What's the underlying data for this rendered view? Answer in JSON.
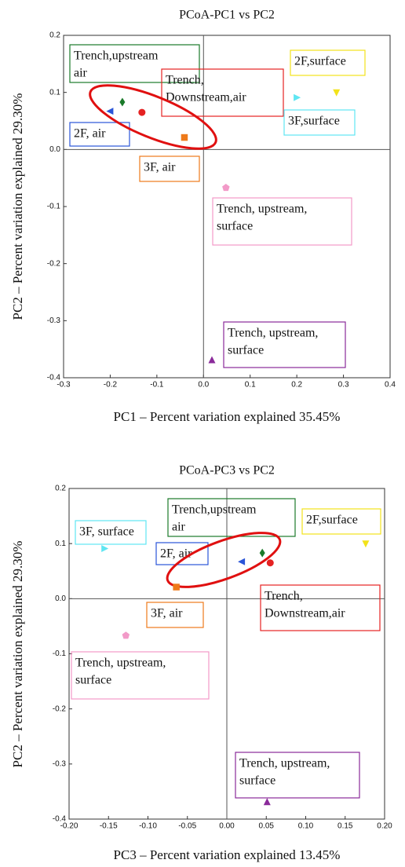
{
  "chart_data": [
    {
      "type": "scatter",
      "title": "PCoA-PC1 vs PC2",
      "x_label": "PC1 – Percent variation explained 35.45%",
      "y_label": "PC2 – Percent variation explained 29.30%",
      "xlim": [
        -0.3,
        0.4
      ],
      "ylim": [
        -0.4,
        0.2
      ],
      "xticks": [
        -0.3,
        -0.2,
        -0.1,
        {
          "value": 0,
          "label": "0.0"
        },
        0.1,
        0.2,
        0.3,
        0.4
      ],
      "yticks": [
        -0.4,
        -0.3,
        -0.2,
        -0.1,
        {
          "value": 0,
          "label": "0.0"
        },
        0.1,
        0.2
      ],
      "zero_lines": true,
      "series": [
        {
          "label": [
            "2F, air"
          ],
          "color": "#2a55d8",
          "marker": "triangle-left",
          "x": -0.2,
          "y": 0.067
        },
        {
          "label": [
            "Trench,upstream",
            "air"
          ],
          "color": "#1a7a2a",
          "marker": "diamond",
          "x": -0.174,
          "y": 0.083
        },
        {
          "label": [
            "Trench,",
            "Downstream,air"
          ],
          "color": "#e52222",
          "marker": "circle",
          "x": -0.132,
          "y": 0.065
        },
        {
          "label": [
            "3F, air"
          ],
          "color": "#ee7a1a",
          "marker": "square",
          "x": -0.041,
          "y": 0.021
        },
        {
          "label": [
            "Trench, upstream,",
            "surface"
          ],
          "color": "#f29ac8",
          "marker": "pentagon",
          "x": 0.048,
          "y": -0.067
        },
        {
          "label": [
            "3F,surface"
          ],
          "color": "#5fe6f2",
          "marker": "triangle-right",
          "x": 0.2,
          "y": 0.091
        },
        {
          "label": [
            "2F,surface"
          ],
          "color": "#f2e21a",
          "marker": "triangle-down",
          "x": 0.285,
          "y": 0.1
        },
        {
          "label": [
            "Trench, upstream,",
            "surface"
          ],
          "color": "#8a2a9a",
          "marker": "triangle-up",
          "x": 0.018,
          "y": -0.369
        }
      ]
    },
    {
      "type": "scatter",
      "title": "PCoA-PC3 vs PC2",
      "x_label": "PC3 – Percent variation explained 13.45%",
      "y_label": "PC2 – Percent variation explained 29.30%",
      "xlim": [
        -0.2,
        0.2
      ],
      "ylim": [
        -0.4,
        0.2
      ],
      "xticks": [
        {
          "value": -0.2,
          "label": "-0.20"
        },
        -0.15,
        {
          "value": -0.1,
          "label": "-0.10"
        },
        -0.05,
        {
          "value": 0,
          "label": "0.00"
        },
        0.05,
        {
          "value": 0.1,
          "label": "0.10"
        },
        0.15,
        {
          "value": 0.2,
          "label": "0.20"
        }
      ],
      "yticks": [
        -0.4,
        -0.3,
        -0.2,
        -0.1,
        {
          "value": 0,
          "label": "0.0"
        },
        0.1,
        0.2
      ],
      "zero_lines": true,
      "series": [
        {
          "label": [
            "2F, air"
          ],
          "color": "#2a55d8",
          "marker": "triangle-left",
          "x": 0.019,
          "y": 0.067
        },
        {
          "label": [
            "Trench,upstream",
            "air"
          ],
          "color": "#1a7a2a",
          "marker": "diamond",
          "x": 0.045,
          "y": 0.083
        },
        {
          "label": [
            "Trench,",
            "Downstream,air"
          ],
          "color": "#e52222",
          "marker": "circle",
          "x": 0.055,
          "y": 0.065
        },
        {
          "label": [
            "3F, air"
          ],
          "color": "#ee7a1a",
          "marker": "square",
          "x": -0.064,
          "y": 0.021
        },
        {
          "label": [
            "Trench, upstream,",
            "surface"
          ],
          "color": "#f29ac8",
          "marker": "pentagon",
          "x": -0.128,
          "y": -0.067
        },
        {
          "label": [
            "3F, surface"
          ],
          "color": "#5fe6f2",
          "marker": "triangle-right",
          "x": -0.155,
          "y": 0.091
        },
        {
          "label": [
            "2F,surface"
          ],
          "color": "#f2e21a",
          "marker": "triangle-down",
          "x": 0.176,
          "y": 0.1
        },
        {
          "label": [
            "Trench, upstream,",
            "surface"
          ],
          "color": "#8a2a9a",
          "marker": "triangle-up",
          "x": 0.051,
          "y": -0.369
        }
      ]
    }
  ]
}
